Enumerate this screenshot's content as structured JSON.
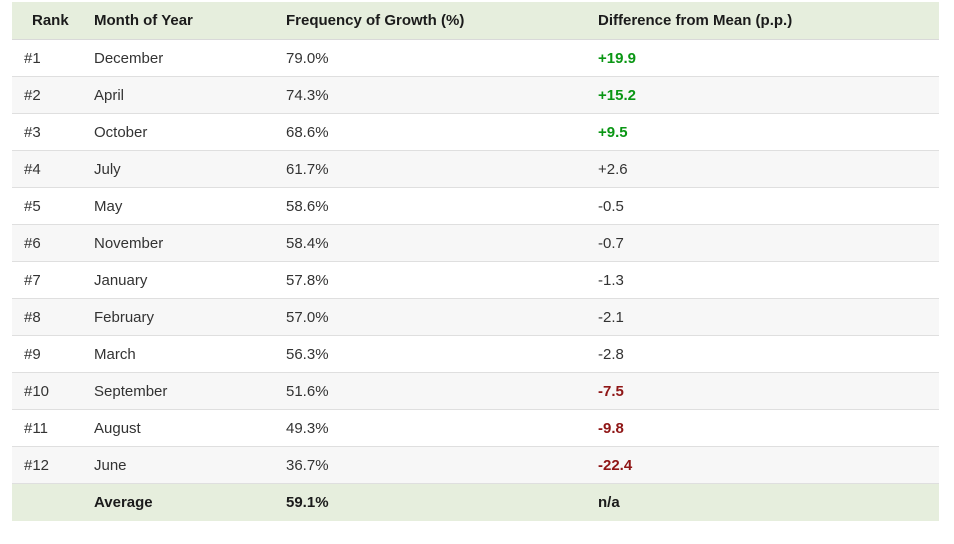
{
  "colors": {
    "header_bg": "#e6eedd",
    "even_row_bg": "#f7f7f7",
    "positive_value": "#0a9614",
    "negative_value": "#8f1616",
    "neutral_text": "#333333",
    "row_border": "#dfdfdf"
  },
  "columns": {
    "rank": "Rank",
    "month": "Month of Year",
    "frequency": "Frequency of Growth (%)",
    "difference": "Difference from Mean (p.p.)"
  },
  "rows": [
    {
      "rank": "#1",
      "month": "December",
      "frequency": "79.0%",
      "difference": "+19.9",
      "diff_class": "pos"
    },
    {
      "rank": "#2",
      "month": "April",
      "frequency": "74.3%",
      "difference": "+15.2",
      "diff_class": "pos"
    },
    {
      "rank": "#3",
      "month": "October",
      "frequency": "68.6%",
      "difference": "+9.5",
      "diff_class": "pos"
    },
    {
      "rank": "#4",
      "month": "July",
      "frequency": "61.7%",
      "difference": "+2.6",
      "diff_class": "neu"
    },
    {
      "rank": "#5",
      "month": "May",
      "frequency": "58.6%",
      "difference": "-0.5",
      "diff_class": "neu"
    },
    {
      "rank": "#6",
      "month": "November",
      "frequency": "58.4%",
      "difference": "-0.7",
      "diff_class": "neu"
    },
    {
      "rank": "#7",
      "month": "January",
      "frequency": "57.8%",
      "difference": "-1.3",
      "diff_class": "neu"
    },
    {
      "rank": "#8",
      "month": "February",
      "frequency": "57.0%",
      "difference": "-2.1",
      "diff_class": "neu"
    },
    {
      "rank": "#9",
      "month": "March",
      "frequency": "56.3%",
      "difference": "-2.8",
      "diff_class": "neu"
    },
    {
      "rank": "#10",
      "month": "September",
      "frequency": "51.6%",
      "difference": "-7.5",
      "diff_class": "neg"
    },
    {
      "rank": "#11",
      "month": "August",
      "frequency": "49.3%",
      "difference": "-9.8",
      "diff_class": "neg"
    },
    {
      "rank": "#12",
      "month": "June",
      "frequency": "36.7%",
      "difference": "-22.4",
      "diff_class": "neg"
    }
  ],
  "average": {
    "rank": "",
    "label": "Average",
    "frequency": "59.1%",
    "difference": "n/a"
  },
  "chart_data": {
    "type": "table",
    "columns": [
      "Rank",
      "Month of Year",
      "Frequency of Growth (%)",
      "Difference from Mean (p.p.)"
    ],
    "rows": [
      [
        "#1",
        "December",
        79.0,
        19.9
      ],
      [
        "#2",
        "April",
        74.3,
        15.2
      ],
      [
        "#3",
        "October",
        68.6,
        9.5
      ],
      [
        "#4",
        "July",
        61.7,
        2.6
      ],
      [
        "#5",
        "May",
        58.6,
        -0.5
      ],
      [
        "#6",
        "November",
        58.4,
        -0.7
      ],
      [
        "#7",
        "January",
        57.8,
        -1.3
      ],
      [
        "#8",
        "February",
        57.0,
        -2.1
      ],
      [
        "#9",
        "March",
        56.3,
        -2.8
      ],
      [
        "#10",
        "September",
        51.6,
        -7.5
      ],
      [
        "#11",
        "August",
        49.3,
        -9.8
      ],
      [
        "#12",
        "June",
        36.7,
        -22.4
      ]
    ],
    "average_row": [
      "",
      "Average",
      59.1,
      "n/a"
    ],
    "value_unit": "%",
    "difference_unit": "p.p."
  }
}
